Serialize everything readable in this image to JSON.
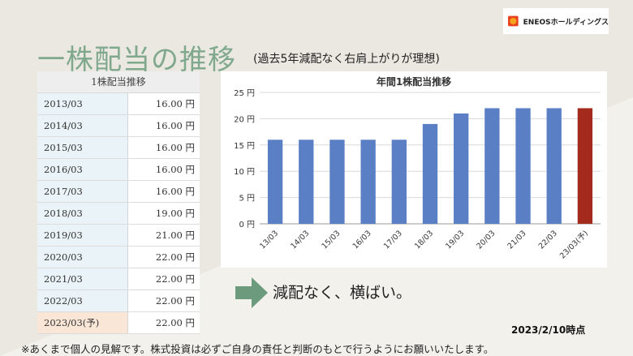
{
  "header": {
    "logo_text": "ENEOSホールディングス",
    "logo_mark": "ENEOS",
    "title": "一株配当の推移",
    "subtitle": "(過去5年減配なく右肩上がりが理想)"
  },
  "table": {
    "header": "1株配当推移",
    "rows": [
      {
        "year": "2013/03",
        "value": "16.00 円"
      },
      {
        "year": "2014/03",
        "value": "16.00 円"
      },
      {
        "year": "2015/03",
        "value": "16.00 円"
      },
      {
        "year": "2016/03",
        "value": "16.00 円"
      },
      {
        "year": "2017/03",
        "value": "16.00 円"
      },
      {
        "year": "2018/03",
        "value": "19.00 円"
      },
      {
        "year": "2019/03",
        "value": "21.00 円"
      },
      {
        "year": "2020/03",
        "value": "22.00 円"
      },
      {
        "year": "2021/03",
        "value": "22.00 円"
      },
      {
        "year": "2022/03",
        "value": "22.00 円"
      },
      {
        "year": "2023/03(予)",
        "value": "22.00 円"
      }
    ]
  },
  "chart_data": {
    "type": "bar",
    "title": "年間1株配当推移",
    "categories": [
      "13/03",
      "14/03",
      "15/03",
      "16/03",
      "17/03",
      "18/03",
      "19/03",
      "20/03",
      "21/03",
      "22/03",
      "23/03(予)"
    ],
    "values": [
      16,
      16,
      16,
      16,
      16,
      19,
      21,
      22,
      22,
      22,
      22
    ],
    "ylim": [
      0,
      25
    ],
    "y_ticks": [
      0,
      5,
      10,
      15,
      20,
      25
    ],
    "y_tick_labels": [
      "0 円",
      "5 円",
      "10 円",
      "15 円",
      "20 円",
      "25 円"
    ],
    "xlabel": "",
    "ylabel": "",
    "colors": {
      "normal": "#5b7fc4",
      "forecast": "#a52a1e"
    },
    "forecast_index": 10,
    "grid": true
  },
  "message": "減配なく、横ばい。",
  "as_of": "2023/2/10時点",
  "footnote": "※あくまで個人の見解です。株式投資は必ずご自身の責任と判断のもとで行うようにお願いいたします。",
  "colors": {
    "title": "#7fa88d",
    "arrow": "#6b9a7c"
  }
}
